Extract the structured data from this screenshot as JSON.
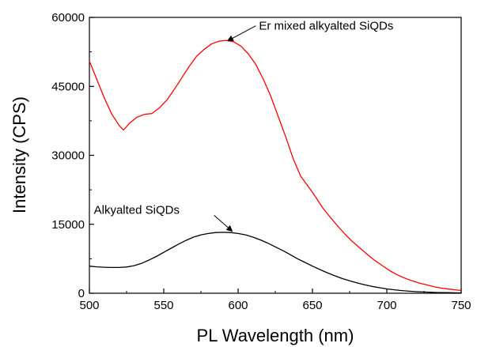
{
  "chart_data": {
    "type": "line",
    "xlabel": "PL Wavelength (nm)",
    "ylabel": "Intensity (CPS)",
    "xlim": [
      500,
      750
    ],
    "ylim": [
      0,
      60000
    ],
    "x_ticks": [
      500,
      550,
      600,
      650,
      700,
      750
    ],
    "x_tick_labels": [
      "500",
      "550",
      "600",
      "650",
      "700",
      "750"
    ],
    "y_ticks": [
      0,
      15000,
      30000,
      45000,
      60000
    ],
    "y_tick_labels": [
      "0",
      "15000",
      "30000",
      "45000",
      "60000"
    ],
    "grid": false,
    "legend": "none",
    "series": [
      {
        "color": "#ff0000",
        "x": [
          500,
          505,
          510,
          515,
          520,
          523,
          527,
          532,
          537,
          542,
          547,
          552,
          557,
          562,
          567,
          572,
          577,
          582,
          587,
          592,
          597,
          602,
          607,
          612,
          617,
          622,
          627,
          632,
          637,
          642,
          647,
          652,
          657,
          662,
          667,
          672,
          677,
          682,
          687,
          692,
          697,
          702,
          707,
          712,
          717,
          722,
          727,
          732,
          737,
          742,
          747,
          750
        ],
        "y": [
          50500,
          46500,
          42500,
          39000,
          36500,
          35500,
          37000,
          38300,
          38900,
          39100,
          40300,
          42000,
          44300,
          46800,
          49300,
          51500,
          53000,
          54200,
          54800,
          55000,
          54700,
          53700,
          52000,
          49700,
          46500,
          42800,
          38400,
          34000,
          29300,
          25500,
          23300,
          21000,
          18500,
          16500,
          14600,
          12800,
          11200,
          9800,
          8400,
          7100,
          6000,
          4900,
          4000,
          3300,
          2700,
          2200,
          1800,
          1400,
          1100,
          900,
          700,
          600
        ]
      },
      {
        "color": "#000000",
        "x": [
          500,
          505,
          510,
          515,
          520,
          525,
          530,
          535,
          540,
          545,
          550,
          555,
          560,
          565,
          570,
          575,
          580,
          585,
          590,
          595,
          600,
          605,
          610,
          615,
          620,
          625,
          630,
          635,
          640,
          645,
          650,
          655,
          660,
          665,
          670,
          675,
          680,
          685,
          690,
          695,
          700,
          705,
          710,
          715,
          720,
          725,
          730,
          735,
          740,
          745,
          750
        ],
        "y": [
          5900,
          5750,
          5650,
          5600,
          5600,
          5700,
          6000,
          6500,
          7200,
          8000,
          8900,
          9800,
          10700,
          11500,
          12200,
          12700,
          13000,
          13200,
          13250,
          13200,
          13000,
          12700,
          12200,
          11600,
          10900,
          10100,
          9300,
          8400,
          7500,
          6700,
          5900,
          5150,
          4450,
          3800,
          3200,
          2700,
          2250,
          1850,
          1500,
          1200,
          950,
          750,
          580,
          450,
          350,
          270,
          210,
          160,
          130,
          100,
          80
        ]
      }
    ],
    "annotations": [
      {
        "text": "Er mixed alkyalted SiQDs",
        "x": 614,
        "y": 57300,
        "arrow_to": [
          593,
          54900
        ]
      },
      {
        "text": "Alkyalted SiQDs",
        "x": 503,
        "y": 17300,
        "arrow_to": [
          596,
          13500
        ]
      }
    ]
  }
}
